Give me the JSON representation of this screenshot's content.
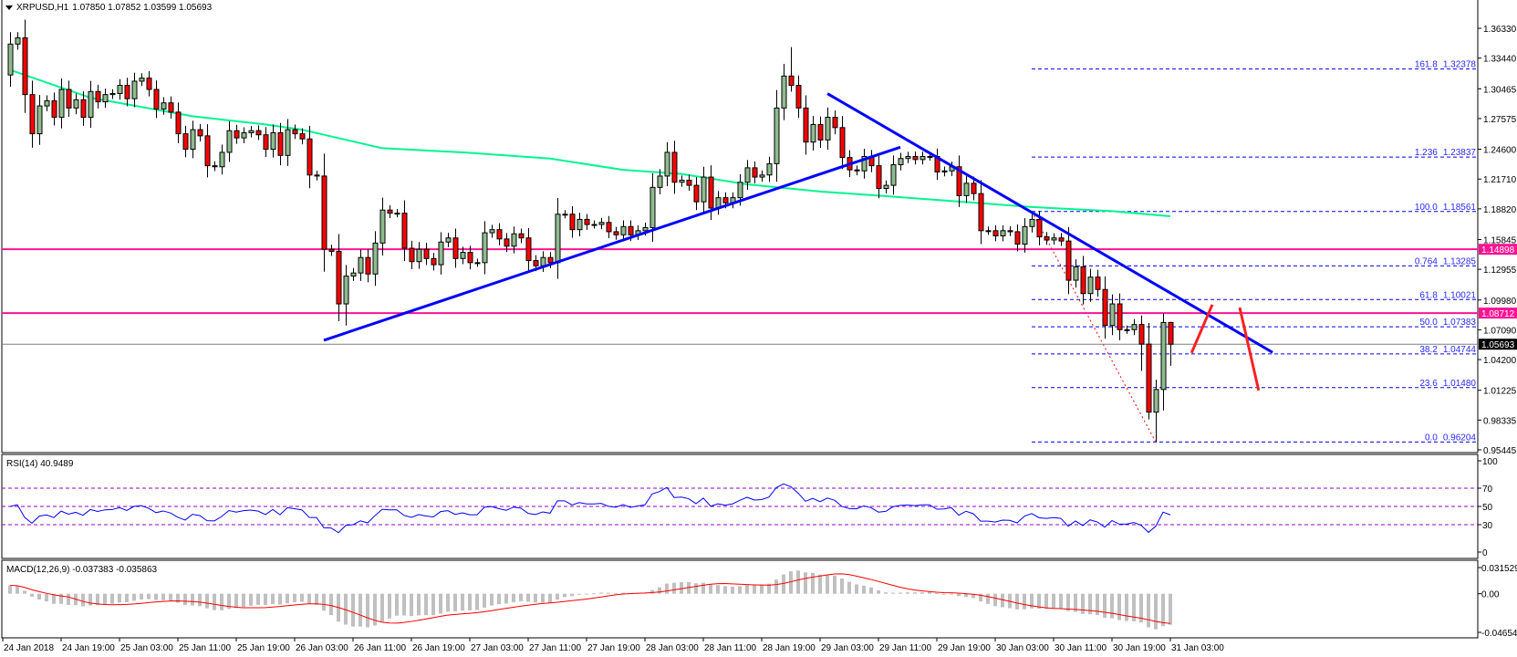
{
  "header": {
    "symbol": "XRPUSD,H1",
    "ohlc": "1.07850 1.07852 1.03599 1.05693"
  },
  "chart_data": {
    "type": "candlestick",
    "title": "XRPUSD,H1",
    "price_axis": {
      "range": [
        0.95445,
        1.3633
      ],
      "ticks": [
        "1.36330",
        "1.33440",
        "1.30465",
        "1.27575",
        "1.24600",
        "1.21710",
        "1.18820",
        "1.15845",
        "1.12955",
        "1.09980",
        "1.07090",
        "1.04200",
        "1.01225",
        "0.98335",
        "0.95445"
      ]
    },
    "time_axis": {
      "bars_per_label": 8,
      "labels": [
        "24 Jan 2018",
        "24 Jan 19:00",
        "25 Jan 03:00",
        "25 Jan 11:00",
        "25 Jan 19:00",
        "26 Jan 03:00",
        "26 Jan 11:00",
        "26 Jan 19:00",
        "27 Jan 03:00",
        "27 Jan 11:00",
        "27 Jan 19:00",
        "28 Jan 03:00",
        "28 Jan 11:00",
        "28 Jan 19:00",
        "29 Jan 03:00",
        "29 Jan 11:00",
        "29 Jan 19:00",
        "30 Jan 03:00",
        "30 Jan 11:00",
        "30 Jan 19:00",
        "31 Jan 03:00"
      ]
    },
    "candles": {
      "first_open": 1.318,
      "close": [
        1.348,
        1.354,
        1.299,
        1.261,
        1.288,
        1.293,
        1.277,
        1.304,
        1.286,
        1.294,
        1.277,
        1.302,
        1.292,
        1.299,
        1.3,
        1.308,
        1.295,
        1.312,
        1.315,
        1.304,
        1.285,
        1.291,
        1.282,
        1.261,
        1.246,
        1.265,
        1.259,
        1.23,
        1.229,
        1.243,
        1.264,
        1.257,
        1.262,
        1.264,
        1.26,
        1.246,
        1.262,
        1.24,
        1.265,
        1.261,
        1.256,
        1.221,
        1.22,
        1.149,
        1.147,
        1.096,
        1.123,
        1.126,
        1.141,
        1.125,
        1.155,
        1.187,
        1.184,
        1.184,
        1.15,
        1.137,
        1.149,
        1.14,
        1.134,
        1.156,
        1.16,
        1.14,
        1.146,
        1.136,
        1.136,
        1.165,
        1.168,
        1.159,
        1.152,
        1.164,
        1.16,
        1.138,
        1.133,
        1.141,
        1.136,
        1.183,
        1.183,
        1.168,
        1.178,
        1.173,
        1.173,
        1.175,
        1.166,
        1.163,
        1.171,
        1.163,
        1.167,
        1.17,
        1.209,
        1.22,
        1.243,
        1.214,
        1.216,
        1.211,
        1.195,
        1.219,
        1.189,
        1.199,
        1.194,
        1.199,
        1.214,
        1.228,
        1.219,
        1.221,
        1.232,
        1.286,
        1.317,
        1.308,
        1.286,
        1.253,
        1.27,
        1.255,
        1.277,
        1.267,
        1.238,
        1.226,
        1.225,
        1.239,
        1.23,
        1.208,
        1.211,
        1.231,
        1.237,
        1.239,
        1.236,
        1.239,
        1.239,
        1.224,
        1.225,
        1.229,
        1.201,
        1.213,
        1.203,
        1.167,
        1.167,
        1.162,
        1.167,
        1.166,
        1.154,
        1.171,
        1.178,
        1.161,
        1.158,
        1.16,
        1.157,
        1.119,
        1.132,
        1.106,
        1.122,
        1.11,
        1.075,
        1.096,
        1.071,
        1.071,
        1.076,
        1.057,
        0.991,
        1.013,
        1.078,
        1.05693
      ],
      "overrides": [
        {
          "i": 46,
          "low": 1.075
        },
        {
          "i": 107,
          "high": 1.345
        },
        {
          "i": 140,
          "high": 1.18561
        },
        {
          "i": 155,
          "low": 1.031
        },
        {
          "i": 156,
          "low": 0.984
        },
        {
          "i": 157,
          "low": 0.96204
        },
        {
          "i": 158,
          "high": 1.0871
        },
        {
          "i": 159,
          "high": 1.07852,
          "low": 1.03599
        }
      ]
    },
    "moving_average": {
      "points": [
        [
          0,
          1.323
        ],
        [
          11,
          1.296
        ],
        [
          25,
          1.278
        ],
        [
          35,
          1.27
        ],
        [
          40,
          1.265
        ],
        [
          51,
          1.247
        ],
        [
          62,
          1.243
        ],
        [
          74,
          1.237
        ],
        [
          84,
          1.226
        ],
        [
          92,
          1.222
        ],
        [
          101,
          1.212
        ],
        [
          111,
          1.205
        ],
        [
          121,
          1.2
        ],
        [
          140,
          1.19
        ],
        [
          151,
          1.186
        ],
        [
          159,
          1.181
        ]
      ]
    },
    "horizontal_levels": [
      {
        "price": 1.14898,
        "label": "1.14898",
        "kind": "resistance"
      },
      {
        "price": 1.08712,
        "label": "1.08712",
        "kind": "resistance"
      },
      {
        "price": 1.05693,
        "label": "1.05693",
        "kind": "current"
      }
    ],
    "trendlines": [
      {
        "from": [
          43,
          1.0607
        ],
        "to": [
          122,
          1.248
        ]
      },
      {
        "from": [
          112,
          1.3
        ],
        "to": [
          173,
          1.049
        ]
      }
    ],
    "fibonacci": {
      "anchor_from": [
        140,
        1.18561
      ],
      "anchor_to": [
        157,
        0.96204
      ],
      "levels": [
        {
          "ratio": "161.8",
          "price": "1.32378"
        },
        {
          "ratio": "1.236",
          "price": "1.23837"
        },
        {
          "ratio": "100.0",
          "price": "1.18561"
        },
        {
          "ratio": "0.764",
          "price": "1.13285"
        },
        {
          "ratio": "61.8",
          "price": "1.10021"
        },
        {
          "ratio": "50.0",
          "price": "1.07383"
        },
        {
          "ratio": "38.2",
          "price": "1.04744"
        },
        {
          "ratio": "23.6",
          "price": "1.01480"
        },
        {
          "ratio": "0.0",
          "price": "0.96204"
        }
      ]
    },
    "annotations": [
      {
        "type": "arrow-up-stroke",
        "from": [
          161.9,
          1.0485
        ],
        "to": [
          164.75,
          1.0953
        ]
      },
      {
        "type": "arrow-down-stroke",
        "from": [
          168.5,
          1.0925
        ],
        "to": [
          171.1,
          1.0121
        ]
      }
    ],
    "rsi": {
      "label": "RSI(14) 40.9489",
      "period": 14,
      "levels": [
        70,
        50,
        30
      ],
      "axis": [
        "100",
        "70",
        "50",
        "30",
        "0"
      ]
    },
    "macd": {
      "label": "MACD(12,26,9) -0.037383 -0.035863",
      "fast": 12,
      "slow": 26,
      "signal": 9,
      "range": [
        -0.046547,
        0.031529
      ],
      "axis": [
        "0.031529",
        "0.00",
        "-0.046547"
      ]
    }
  },
  "colors": {
    "bull": "#8FBC8F",
    "bear": "#FF0000",
    "ma": "#00F590",
    "trendline": "#0000FF",
    "fib": "#0000FF",
    "level": "#FF1493",
    "annotation": "#FF2020",
    "rsi_line": "#0000FF",
    "rsi_levels": "#9900CC",
    "macd_hist": "#C0C0C0",
    "macd_signal": "#FF0000",
    "current": "#808080"
  }
}
